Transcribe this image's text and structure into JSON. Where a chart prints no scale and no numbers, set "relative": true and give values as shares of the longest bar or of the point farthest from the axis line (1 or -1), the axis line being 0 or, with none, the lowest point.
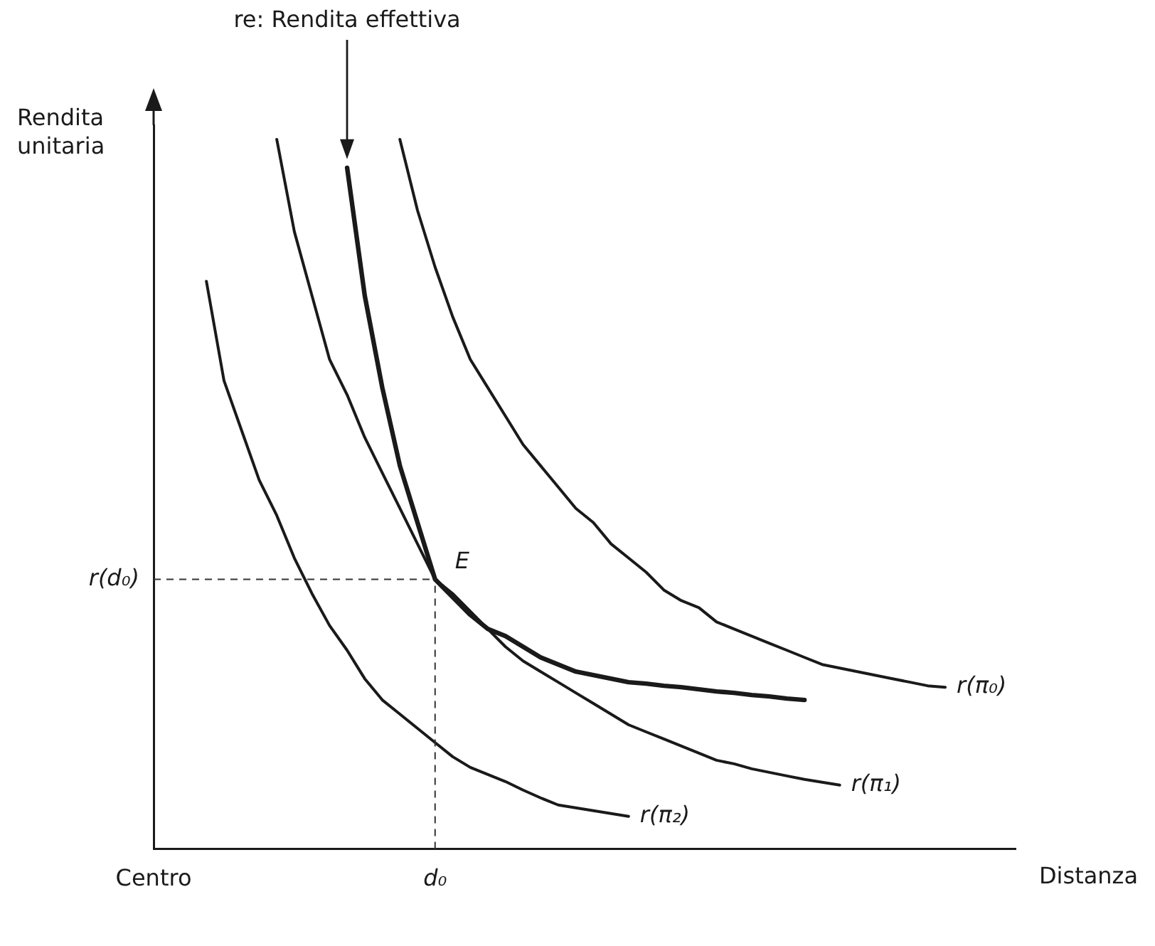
{
  "chart_data": {
    "type": "line",
    "relative": true,
    "xlabel": "Distanza",
    "ylabel": "Rendita unitaria",
    "grid": false,
    "legend": false,
    "marker": "none",
    "line_style": "solid",
    "categories": [
      "Centro",
      null,
      null,
      null,
      null,
      null,
      null,
      null,
      null,
      null,
      null,
      null,
      null,
      null,
      null,
      null,
      "d₀",
      null,
      null,
      null,
      null,
      null,
      null,
      null,
      null,
      null,
      null,
      null,
      null,
      null,
      null,
      null,
      null,
      null,
      null,
      null,
      null,
      null,
      null,
      null,
      null,
      null,
      null,
      null,
      null,
      null,
      null,
      null,
      null,
      null
    ],
    "series": [
      {
        "name": "r(π₀)",
        "color": "#1a1a1a",
        "values": [
          null,
          null,
          null,
          null,
          null,
          null,
          null,
          null,
          null,
          null,
          null,
          null,
          null,
          null,
          1.0,
          0.9,
          0.82,
          0.75,
          0.69,
          0.65,
          0.61,
          0.57,
          0.54,
          0.51,
          0.48,
          0.46,
          0.43,
          0.41,
          0.39,
          0.365,
          0.35,
          0.34,
          0.32,
          0.31,
          0.3,
          0.29,
          0.28,
          0.27,
          0.26,
          0.255,
          0.25,
          0.245,
          0.24,
          0.235,
          0.23,
          0.228,
          null,
          null,
          null,
          null
        ]
      },
      {
        "name": "r(π₁)",
        "color": "#1a1a1a",
        "values": [
          null,
          null,
          null,
          null,
          null,
          null,
          null,
          1.0,
          0.87,
          0.78,
          0.69,
          0.64,
          0.58,
          0.53,
          0.48,
          0.43,
          0.38,
          0.36,
          0.335,
          0.31,
          0.285,
          0.265,
          0.25,
          0.235,
          0.22,
          0.205,
          0.19,
          0.175,
          0.165,
          0.155,
          0.145,
          0.135,
          0.125,
          0.12,
          0.113,
          0.108,
          0.103,
          0.098,
          0.094,
          0.09,
          null,
          null,
          null,
          null,
          null,
          null,
          null,
          null,
          null,
          null
        ]
      },
      {
        "name": "r(π₂)",
        "color": "#1a1a1a",
        "values": [
          null,
          null,
          null,
          0.8,
          0.66,
          0.59,
          0.52,
          0.47,
          0.41,
          0.36,
          0.315,
          0.28,
          0.24,
          0.21,
          0.19,
          0.17,
          0.15,
          0.13,
          0.115,
          0.105,
          0.095,
          0.083,
          0.072,
          0.062,
          0.058,
          0.054,
          0.05,
          0.046,
          null,
          null,
          null,
          null,
          null,
          null,
          null,
          null,
          null,
          null,
          null,
          null,
          null,
          null,
          null,
          null,
          null,
          null,
          null,
          null,
          null,
          null
        ]
      },
      {
        "color": "#1a1a1a",
        "values": [
          null,
          null,
          null,
          null,
          null,
          null,
          null,
          null,
          null,
          null,
          null,
          0.96,
          0.78,
          0.65,
          0.54,
          0.46,
          0.38,
          0.355,
          0.33,
          0.31,
          0.3,
          0.285,
          0.27,
          0.26,
          0.25,
          0.245,
          0.24,
          0.235,
          0.233,
          0.23,
          0.228,
          0.225,
          0.222,
          0.22,
          0.217,
          0.215,
          0.212,
          0.21,
          null,
          null,
          null,
          null,
          null,
          null,
          null,
          null,
          null,
          null,
          null,
          null
        ]
      }
    ],
    "ref_lines": [
      {
        "axis": "x",
        "value": "d₀",
        "line_style": "dashed"
      },
      {
        "axis": "y",
        "value": 0.38,
        "label": "r(d₀)",
        "line_style": "dashed"
      }
    ],
    "annotations": [
      "re: Rendita effettiva",
      {
        "text": "E",
        "x": "d₀",
        "y": 0.38
      }
    ]
  }
}
